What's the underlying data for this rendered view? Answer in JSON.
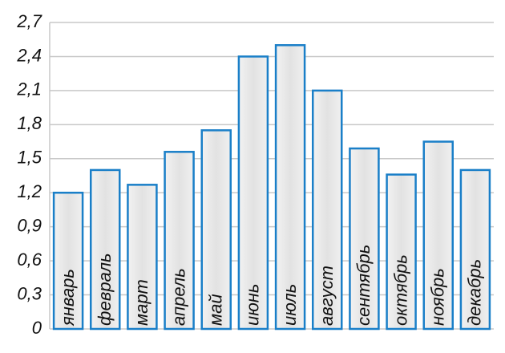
{
  "chart_data": {
    "type": "bar",
    "categories": [
      "январь",
      "февраль",
      "март",
      "апрель",
      "май",
      "июнь",
      "июль",
      "август",
      "сентябрь",
      "октябрь",
      "ноябрь",
      "декабрь"
    ],
    "values": [
      1.2,
      1.4,
      1.27,
      1.56,
      1.75,
      2.4,
      2.5,
      2.1,
      1.59,
      1.36,
      1.65,
      1.4
    ],
    "color": "#1a7fc8",
    "ylim": [
      0,
      2.7
    ],
    "yticks": [
      0,
      {
        "value": 0.3,
        "label": "0,3"
      },
      {
        "value": 0.6,
        "label": "0,6"
      },
      {
        "value": 0.9,
        "label": "0,9"
      },
      {
        "value": 1.2,
        "label": "1,2"
      },
      {
        "value": 1.5,
        "label": "1,5"
      },
      {
        "value": 1.8,
        "label": "1,8"
      },
      {
        "value": 2.1,
        "label": "2,1"
      },
      {
        "value": 2.4,
        "label": "2,4"
      },
      {
        "value": 2.7,
        "label": "2,7"
      }
    ],
    "grid": true
  }
}
